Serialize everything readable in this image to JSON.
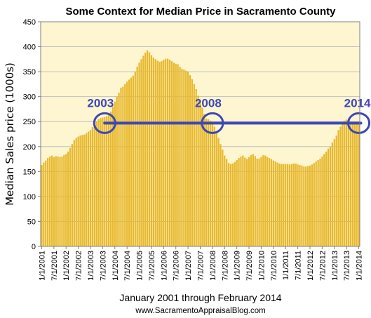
{
  "chart_data": {
    "type": "bar",
    "title": "Some Context for Median Price in Sacramento County",
    "ylabel": "Median Sales price (1000s)",
    "xlabel": "January 2001 through February 2014",
    "source": "www.SacramentoAppraisalBlog.com",
    "ylim": [
      0,
      450
    ],
    "yticks": [
      0,
      50,
      100,
      150,
      200,
      250,
      300,
      350,
      400,
      450
    ],
    "grid": true,
    "legend": "none",
    "bar_color": "#E8B92E",
    "background_color": "#FDF6D0",
    "x_tick_labels": [
      "1/1/2001",
      "7/1/2001",
      "1/1/2002",
      "7/1/2002",
      "1/1/2003",
      "7/1/2003",
      "1/1/2004",
      "7/1/2004",
      "1/1/2005",
      "7/1/2005",
      "1/1/2006",
      "7/1/2006",
      "1/1/2007",
      "7/1/2007",
      "1/1/2008",
      "7/1/2008",
      "1/1/2009",
      "7/1/2009",
      "1/1/2010",
      "7/1/2010",
      "1/1/2011",
      "7/1/2011",
      "1/1/2012",
      "7/1/2012",
      "1/1/2013",
      "7/1/2013",
      "1/1/2014"
    ],
    "values": [
      163,
      168,
      172,
      177,
      180,
      182,
      179,
      181,
      180,
      179,
      180,
      183,
      185,
      190,
      197,
      205,
      213,
      217,
      220,
      222,
      223,
      224,
      227,
      230,
      233,
      239,
      245,
      250,
      255,
      257,
      258,
      259,
      261,
      265,
      270,
      280,
      290,
      300,
      308,
      318,
      320,
      325,
      330,
      334,
      338,
      342,
      350,
      360,
      368,
      375,
      382,
      388,
      393,
      389,
      383,
      378,
      375,
      372,
      370,
      371,
      374,
      376,
      376,
      374,
      371,
      368,
      366,
      365,
      360,
      356,
      354,
      352,
      350,
      343,
      335,
      325,
      315,
      302,
      290,
      278,
      265,
      256,
      255,
      252,
      246,
      240,
      228,
      217,
      205,
      194,
      182,
      175,
      167,
      165,
      166,
      169,
      173,
      177,
      180,
      182,
      178,
      175,
      179,
      183,
      185,
      181,
      176,
      176,
      179,
      183,
      182,
      179,
      177,
      175,
      172,
      170,
      168,
      166,
      165,
      165,
      165,
      165,
      164,
      165,
      166,
      166,
      164,
      163,
      162,
      160,
      160,
      161,
      162,
      164,
      167,
      170,
      173,
      176,
      180,
      185,
      190,
      196,
      200,
      208,
      215,
      222,
      233,
      240,
      247,
      252,
      254,
      252,
      250,
      249,
      248,
      249,
      250
    ],
    "annotations": [
      {
        "label": "2003",
        "date": "Aug 2003"
      },
      {
        "label": "2008",
        "date": "Jan 2008"
      },
      {
        "label": "2014",
        "date": "Jan 2014"
      }
    ],
    "reference_line": {
      "value": 247,
      "from": "Aug 2003",
      "to": "Feb 2014",
      "color": "#3D47B8"
    }
  }
}
